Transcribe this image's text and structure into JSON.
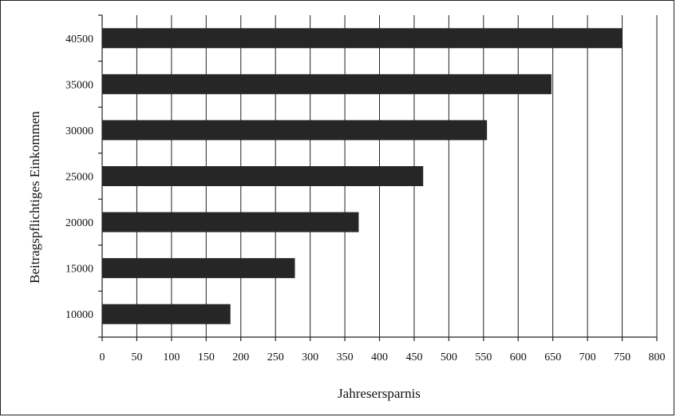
{
  "chart_data": {
    "type": "bar",
    "orientation": "horizontal",
    "categories": [
      "10000",
      "15000",
      "20000",
      "25000",
      "30000",
      "35000",
      "40500"
    ],
    "values": [
      185,
      278,
      370,
      463,
      555,
      648,
      750
    ],
    "xlabel": "Jahresersparnis",
    "ylabel": "Beitragspflichtiges Einkommen",
    "xlim": [
      0,
      800
    ],
    "xticks": [
      "0",
      "50",
      "100",
      "150",
      "200",
      "250",
      "300",
      "350",
      "400",
      "450",
      "500",
      "550",
      "600",
      "650",
      "700",
      "750",
      "800"
    ],
    "grid": "vertical",
    "legend": "none",
    "bar_color": "#262626"
  }
}
